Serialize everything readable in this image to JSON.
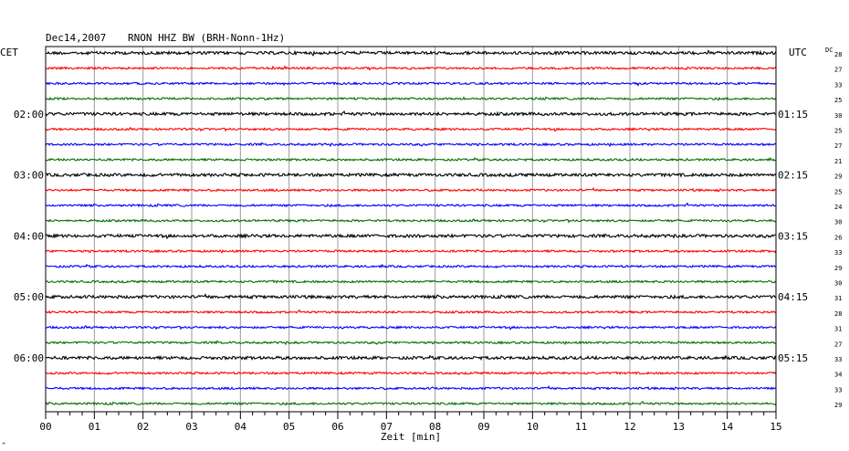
{
  "header": {
    "date": "Dec14,2007",
    "station": "RNON HHZ BW (BRH-Nonn-1Hz)",
    "left_zone": "CET",
    "right_zone": "UTC",
    "dc_label": "DC"
  },
  "footer": {
    "xlabel": "Zeit [min]",
    "corner_mark": "^"
  },
  "chart_data": {
    "type": "line",
    "title": "Dec14,2007 RNON HHZ BW (BRH-Nonn-1Hz)",
    "xlabel": "Zeit [min]",
    "ylabel": "",
    "xlim": [
      0,
      15
    ],
    "x_ticks": [
      "00",
      "01",
      "02",
      "03",
      "04",
      "05",
      "06",
      "07",
      "08",
      "09",
      "10",
      "11",
      "12",
      "13",
      "14",
      "15"
    ],
    "grid": true,
    "trace_colors": [
      "#000000",
      "#ff0000",
      "#0000ff",
      "#007000"
    ],
    "left_time_labels": [
      {
        "trace": 4,
        "label": "02:00"
      },
      {
        "trace": 8,
        "label": "03:00"
      },
      {
        "trace": 12,
        "label": "04:00"
      },
      {
        "trace": 16,
        "label": "05:00"
      },
      {
        "trace": 20,
        "label": "06:00"
      }
    ],
    "right_time_labels": [
      {
        "trace": 4,
        "label": "01:15"
      },
      {
        "trace": 8,
        "label": "02:15"
      },
      {
        "trace": 12,
        "label": "03:15"
      },
      {
        "trace": 16,
        "label": "04:15"
      },
      {
        "trace": 20,
        "label": "05:15"
      }
    ],
    "dc_offsets": [
      "28",
      "27",
      "33",
      "25",
      "30",
      "25",
      "27",
      "21",
      "29",
      "25",
      "24",
      "30",
      "26",
      "33",
      "29",
      "30",
      "31",
      "28",
      "31",
      "27",
      "33",
      "34",
      "33",
      "29"
    ]
  }
}
